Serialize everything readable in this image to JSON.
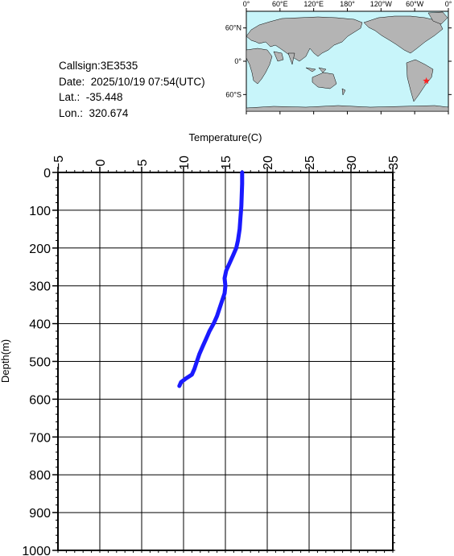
{
  "station": {
    "callsign": "Callsign:3E3535",
    "date": "Date:  2025/10/19 07:54(UTC)",
    "lat": "Lat.:  -35.448",
    "lon": "Lon.:  320.674"
  },
  "map": {
    "lon_labels": [
      "0°",
      "60°E",
      "120°E",
      "180°",
      "120°W",
      "60°W",
      "0°"
    ],
    "lat_labels": [
      "60°N",
      "0°",
      "60°S"
    ],
    "marker_lon": 320.674,
    "marker_lat": -35.448,
    "ocean_color": "#c8f5fa",
    "land_color": "#b4b4b4",
    "marker_color": "#ff2020",
    "marker_icon": "star-icon"
  },
  "chart_data": {
    "type": "line",
    "xlabel": "Temperature(C)",
    "ylabel": "Depth(m)",
    "xlim": [
      -5,
      35
    ],
    "ylim": [
      0,
      1000
    ],
    "y_inverted": true,
    "x_ticks": [
      -5,
      0,
      5,
      10,
      15,
      20,
      25,
      30,
      35
    ],
    "y_ticks": [
      0,
      100,
      200,
      300,
      400,
      500,
      600,
      700,
      800,
      900,
      1000
    ],
    "grid": true,
    "line_color": "#1a1aff",
    "series": [
      {
        "x": [
          17.0,
          17.0,
          16.95,
          16.9,
          16.8,
          16.7,
          16.5,
          16.3,
          15.9,
          15.5,
          15.1,
          14.9,
          15.0,
          14.9,
          14.6,
          14.3,
          14.0,
          13.6,
          13.1,
          12.7,
          12.3,
          11.9,
          11.6,
          11.3,
          11.0,
          10.3,
          9.7,
          9.5
        ],
        "y": [
          0,
          30,
          60,
          90,
          120,
          150,
          180,
          200,
          220,
          240,
          260,
          280,
          300,
          320,
          340,
          360,
          380,
          400,
          420,
          440,
          460,
          480,
          500,
          520,
          535,
          545,
          555,
          565
        ]
      }
    ]
  }
}
